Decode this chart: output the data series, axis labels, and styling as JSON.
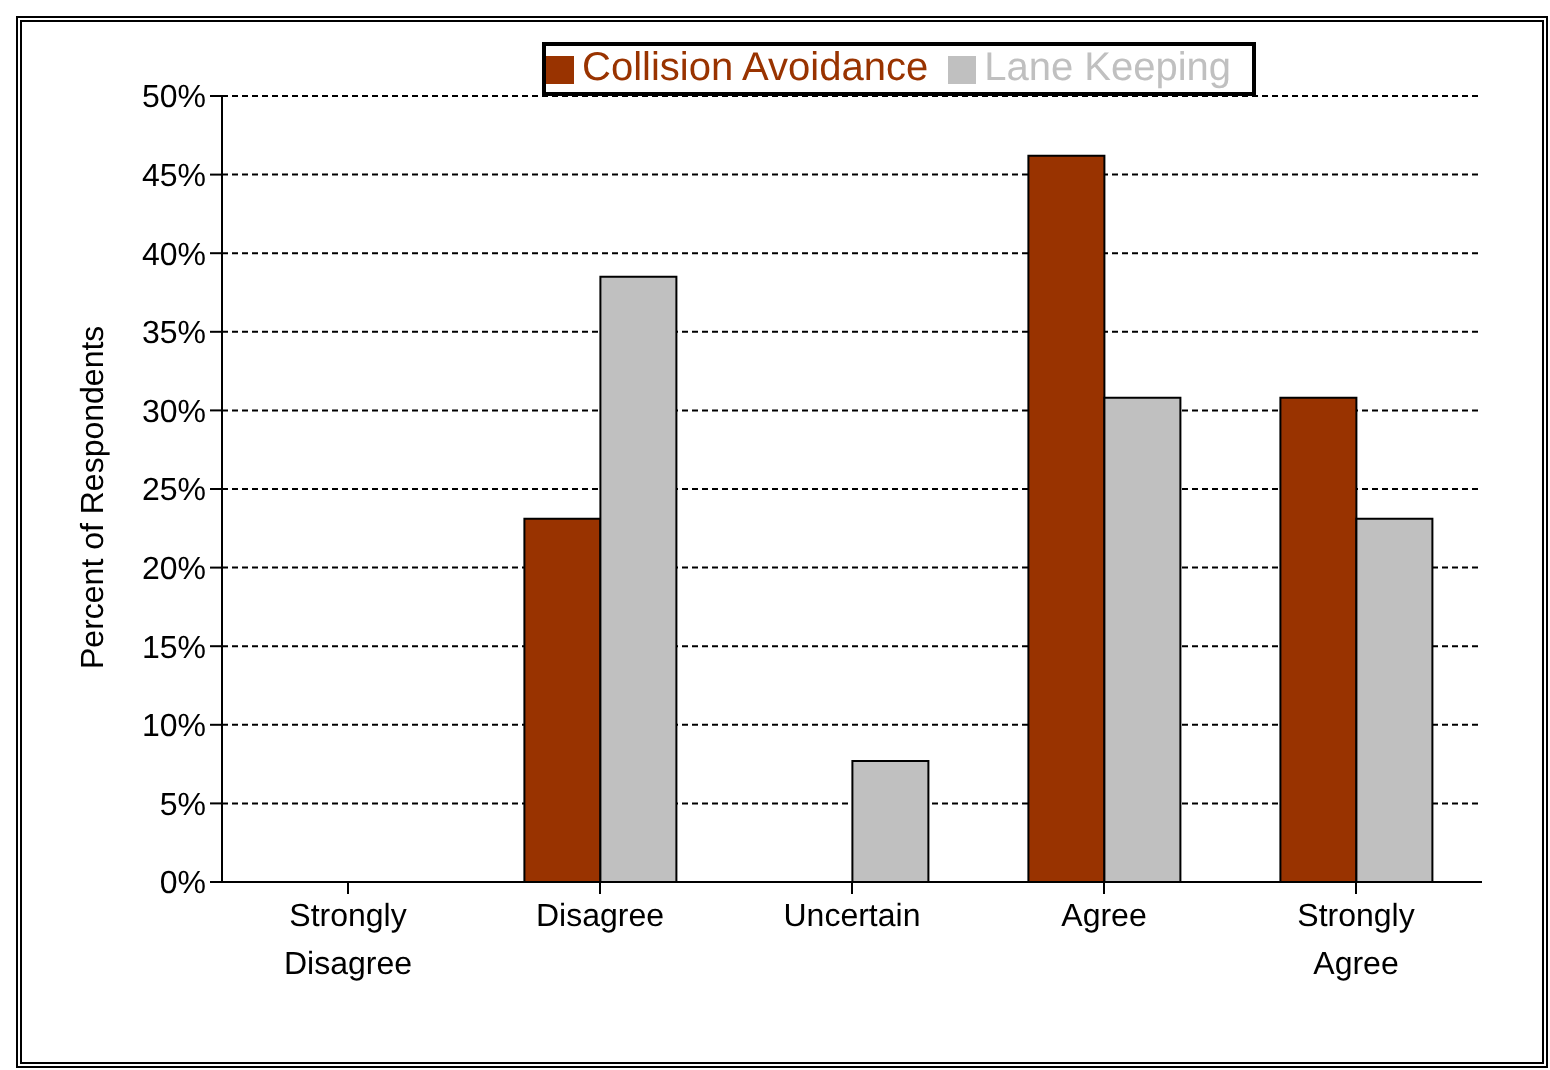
{
  "chart_data": {
    "type": "bar",
    "ylabel": "Percent of Respondents",
    "categories": [
      "Strongly Disagree",
      "Disagree",
      "Uncertain",
      "Agree",
      "Strongly Agree"
    ],
    "series": [
      {
        "name": "Collision Avoidance",
        "color": "#993300",
        "values": [
          0,
          23.1,
          0,
          46.2,
          30.8
        ]
      },
      {
        "name": "Lane Keeping",
        "color": "#c0c0c0",
        "values": [
          0,
          38.5,
          7.7,
          30.8,
          23.1
        ]
      }
    ],
    "ylim": [
      0,
      50
    ],
    "yticks": [
      {
        "value": 0,
        "label": "0%"
      },
      {
        "value": 5,
        "label": "5%"
      },
      {
        "value": 10,
        "label": "10%"
      },
      {
        "value": 15,
        "label": "15%"
      },
      {
        "value": 20,
        "label": "20%"
      },
      {
        "value": 25,
        "label": "25%"
      },
      {
        "value": 30,
        "label": "30%"
      },
      {
        "value": 35,
        "label": "35%"
      },
      {
        "value": 40,
        "label": "40%"
      },
      {
        "value": 45,
        "label": "45%"
      },
      {
        "value": 50,
        "label": "50%"
      }
    ],
    "grid": "y",
    "legend": "top"
  }
}
